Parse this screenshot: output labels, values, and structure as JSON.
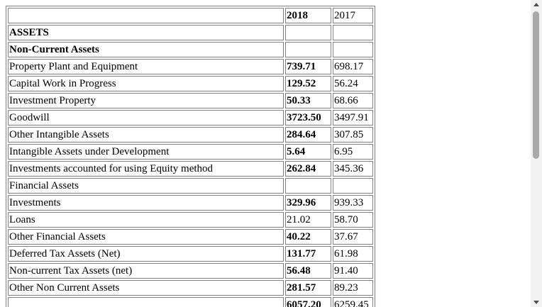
{
  "table": {
    "header": {
      "label": "",
      "y2018": "2018",
      "y2017": "2017"
    },
    "rows": [
      {
        "label": "ASSETS",
        "y2018": "",
        "y2017": "",
        "label_bold": true
      },
      {
        "label": "Non-Current Assets",
        "y2018": "",
        "y2017": "",
        "label_bold": true
      },
      {
        "label": "Property Plant and Equipment",
        "y2018": "739.71",
        "y2017": "698.17",
        "v_bold": true
      },
      {
        "label": "Capital Work in Progress",
        "y2018": "129.52",
        "y2017": "56.24",
        "v_bold": true
      },
      {
        "label": "Investment Property",
        "y2018": "50.33",
        "y2017": "68.66",
        "v_bold": true
      },
      {
        "label": "Goodwill",
        "y2018": "3723.50",
        "y2017": "3497.91",
        "v_bold": true
      },
      {
        "label": "Other Intangible Assets",
        "y2018": "284.64",
        "y2017": "307.85",
        "v_bold": true
      },
      {
        "label": "Intangible Assets under Development",
        "y2018": "5.64",
        "y2017": "6.95",
        "v_bold": true
      },
      {
        "label": "Investments accounted for using Equity method",
        "y2018": "262.84",
        "y2017": "345.36",
        "v_bold": true
      },
      {
        "label": "Financial Assets",
        "y2018": "",
        "y2017": ""
      },
      {
        "label": "Investments",
        "y2018": "329.96",
        "y2017": "939.33",
        "v_bold": true
      },
      {
        "label": "Loans",
        "y2018": "21.02",
        "y2017": "58.70",
        "v_bold": false
      },
      {
        "label": "Other Financial Assets",
        "y2018": "40.22",
        "y2017": "37.67",
        "v_bold": true
      },
      {
        "label": "Deferred Tax Assets (Net)",
        "y2018": "131.77",
        "y2017": "61.98",
        "v_bold": true
      },
      {
        "label": "Non-current Tax Assets (net)",
        "y2018": "56.48",
        "y2017": "91.40",
        "v_bold": true
      },
      {
        "label": "Other Non Current Assets",
        "y2018": "281.57",
        "y2017": "89.23",
        "v_bold": true
      },
      {
        "label": "",
        "y2018": "6057.20",
        "y2017": "6259.45",
        "v_bold": true
      }
    ]
  }
}
